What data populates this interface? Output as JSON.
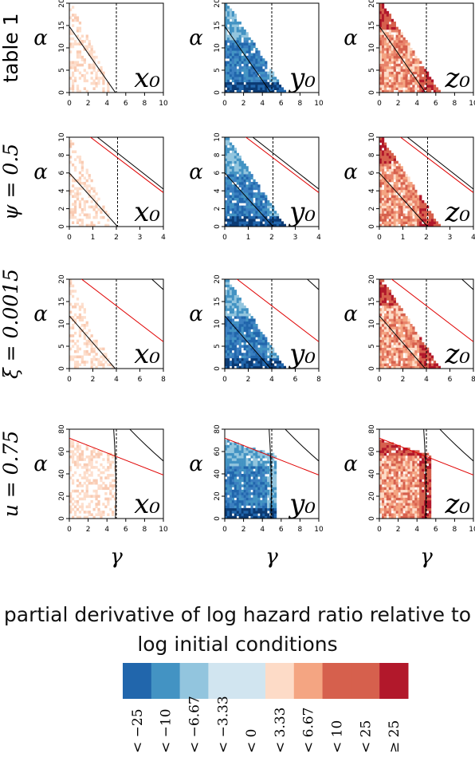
{
  "chart_data": {
    "type": "heatmap",
    "panel_xlabel": "γ",
    "panel_ylabel": "α",
    "rows": [
      {
        "label": "table 1",
        "xlim": [
          0,
          10
        ],
        "ylim": [
          0,
          20
        ],
        "xticks": [
          "0",
          "2",
          "4",
          "6",
          "8",
          "10"
        ],
        "yticks": [
          "0",
          "5",
          "10",
          "15",
          "20"
        ]
      },
      {
        "label": "ψ = 0.5",
        "xlim": [
          0,
          4
        ],
        "ylim": [
          0,
          10
        ],
        "xticks": [
          "0",
          "1",
          "2",
          "3",
          "4"
        ],
        "yticks": [
          "0",
          "2",
          "4",
          "6",
          "8",
          "10"
        ]
      },
      {
        "label": "ξ = 0.0015",
        "xlim": [
          0,
          8
        ],
        "ylim": [
          0,
          20
        ],
        "xticks": [
          "0",
          "2",
          "4",
          "6",
          "8"
        ],
        "yticks": [
          "0",
          "5",
          "10",
          "15",
          "20"
        ]
      },
      {
        "label": "u = 0.75",
        "xlim": [
          0,
          10
        ],
        "ylim": [
          0,
          80
        ],
        "xticks": [
          "0",
          "2",
          "4",
          "6",
          "8",
          "10"
        ],
        "yticks": [
          "0",
          "20",
          "40",
          "60",
          "80"
        ]
      }
    ],
    "columns": [
      "x₀",
      "y₀",
      "z₀"
    ],
    "legend": {
      "title": "partial derivative of log hazard ratio relative to log initial conditions",
      "bins": [
        {
          "label": "< −25",
          "color": "#2166ac"
        },
        {
          "label": "< −10",
          "color": "#4393c3"
        },
        {
          "label": "< −6.67",
          "color": "#92c5de"
        },
        {
          "label": "< −3.33",
          "color": "#d1e5f0"
        },
        {
          "label": "< 0",
          "color": "#d1e5f0"
        },
        {
          "label": "< 3.33",
          "color": "#fddbc7"
        },
        {
          "label": "< 6.67",
          "color": "#f4a582"
        },
        {
          "label": "< 10",
          "color": "#d6604d"
        },
        {
          "label": "< 25",
          "color": "#d6604d"
        },
        {
          "label": "≥ 25",
          "color": "#b2182b"
        }
      ]
    }
  }
}
